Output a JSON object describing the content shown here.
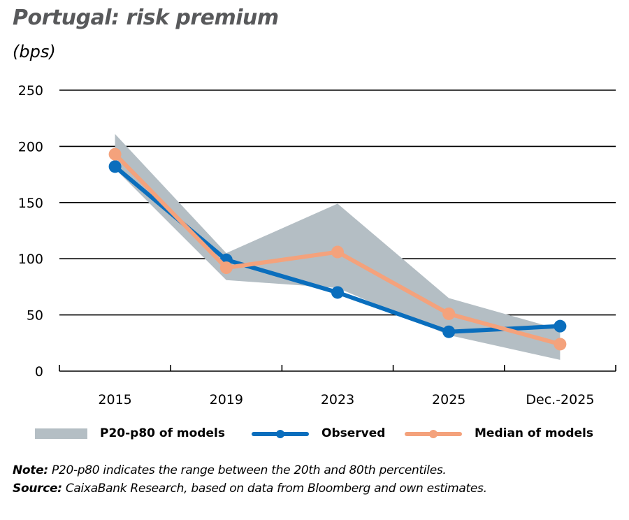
{
  "title": "Portugal: risk premium",
  "unit_label": "(bps)",
  "legend": [
    {
      "key": "band",
      "label": "P20-p80 of models"
    },
    {
      "key": "observed",
      "label": "Observed"
    },
    {
      "key": "median",
      "label": "Median of models"
    }
  ],
  "notes": {
    "note_label": "Note:",
    "note_text": " P20-p80 indicates the range between the 20th and 80th percentiles.",
    "source_label": "Source:",
    "source_text": " CaixaBank Research, based on data from Bloomberg and own estimates."
  },
  "colors": {
    "observed": "#0a6ebd",
    "median": "#f4a27c",
    "band": "#b4bec4",
    "title": "#58595b",
    "grid": "#000000"
  },
  "chart_data": {
    "type": "line",
    "title": "Portugal: risk premium",
    "ylabel": "(bps)",
    "xlabel": "",
    "categories": [
      "2015",
      "2019",
      "2023",
      "2025",
      "Dec.-2025"
    ],
    "series": [
      {
        "name": "Observed",
        "values": [
          182,
          99,
          70,
          35,
          40
        ]
      },
      {
        "name": "Median of models",
        "values": [
          193,
          92,
          106,
          51,
          24
        ]
      }
    ],
    "band": {
      "name": "P20-p80 of models",
      "upper": [
        211,
        105,
        149,
        65,
        37
      ],
      "lower": [
        180,
        81,
        74,
        32,
        10
      ]
    },
    "ylim": [
      0,
      250
    ],
    "yticks": [
      0,
      50,
      100,
      150,
      200,
      250
    ],
    "grid": true,
    "legend_position": "bottom"
  }
}
